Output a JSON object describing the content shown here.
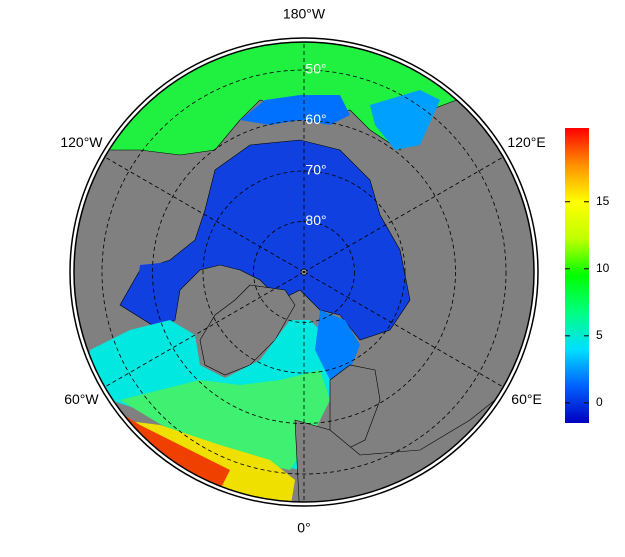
{
  "map": {
    "longitude_labels": [
      {
        "value": 180,
        "label": "180°W"
      },
      {
        "value": 120,
        "label": "120°E"
      },
      {
        "value": 60,
        "label": "60°E"
      },
      {
        "value": 0,
        "label": "0°"
      },
      {
        "value": -60,
        "label": "60°W"
      },
      {
        "value": -120,
        "label": "120°W"
      }
    ],
    "latitude_labels": [
      {
        "value": 50,
        "label": "50°"
      },
      {
        "value": 60,
        "label": "60°"
      },
      {
        "value": 70,
        "label": "70°"
      },
      {
        "value": 80,
        "label": "80°"
      }
    ]
  },
  "colorbar": {
    "lim": [
      -1.5,
      20.5
    ],
    "ticks": [
      0,
      5,
      10,
      15
    ],
    "colors": [
      "#0000c0",
      "#0060ff",
      "#00e0ff",
      "#00ff80",
      "#00ff00",
      "#c0ff00",
      "#ffff00",
      "#ff9000",
      "#ff0000"
    ]
  }
}
